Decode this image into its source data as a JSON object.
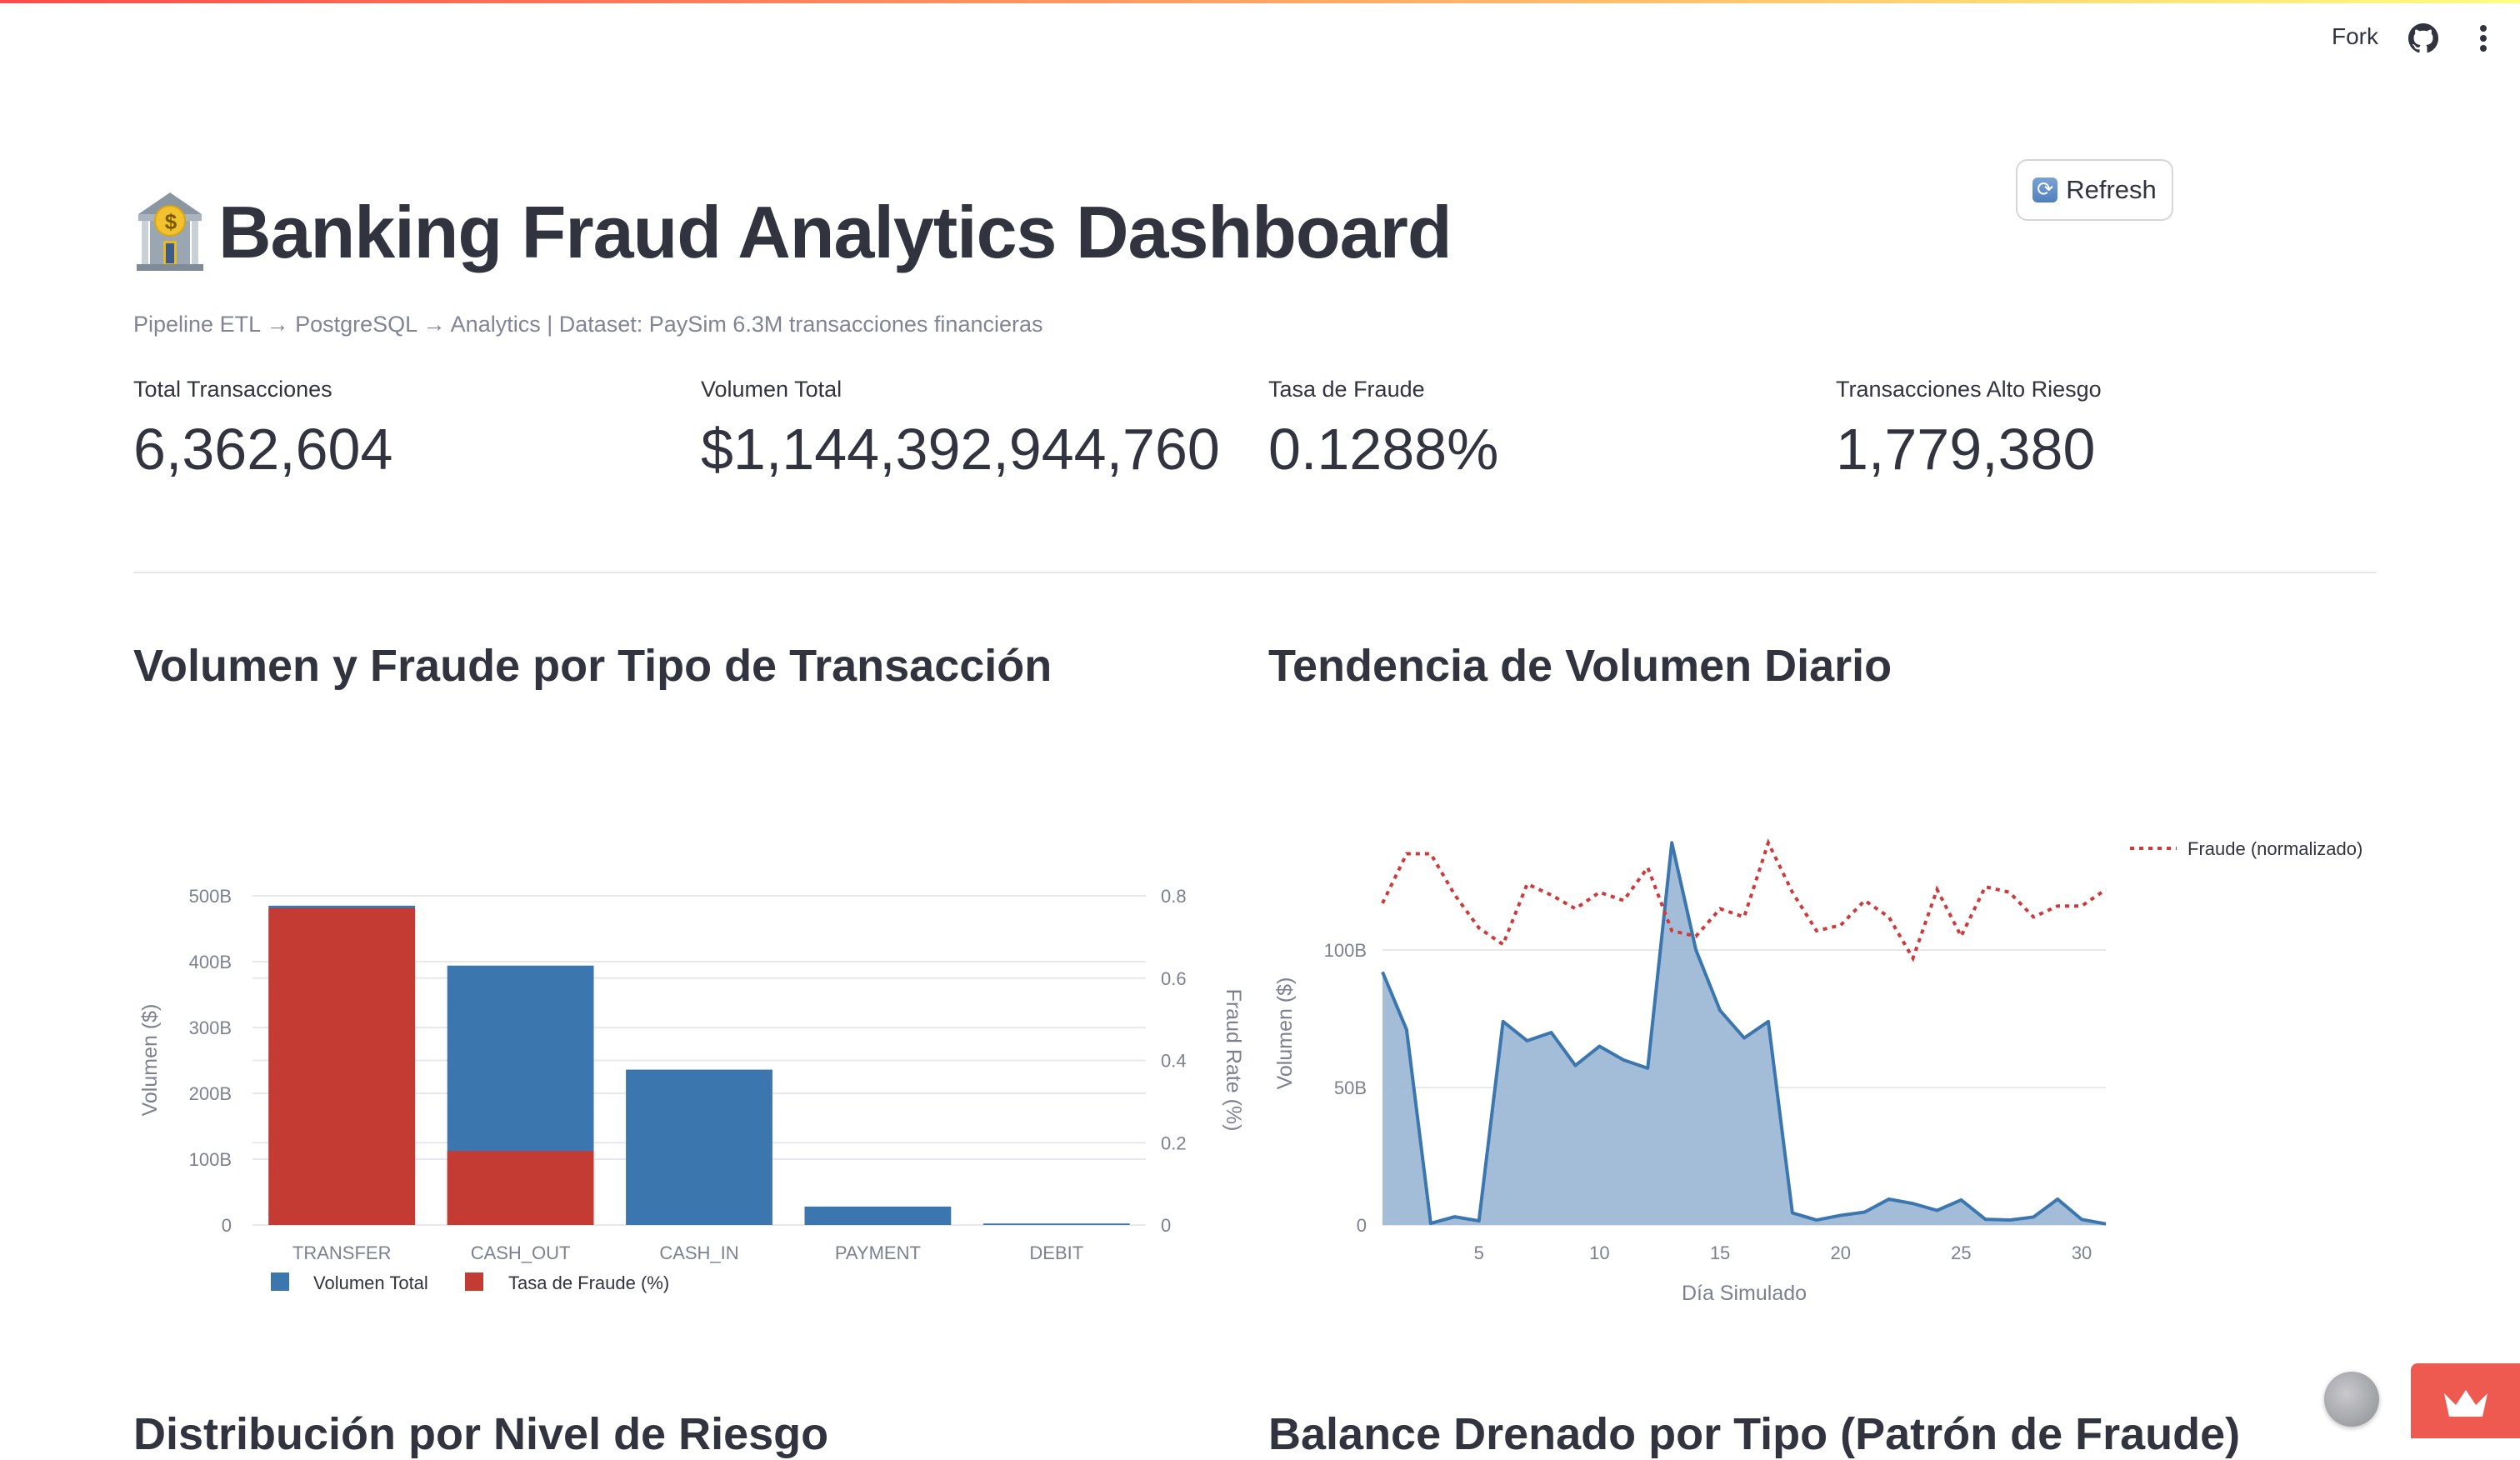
{
  "header": {
    "fork_label": "Fork",
    "github_icon": "github-icon",
    "menu_icon": "kebab-menu-icon"
  },
  "refresh_button": {
    "label": "Refresh",
    "icon": "refresh-icon"
  },
  "page": {
    "title": "Banking Fraud Analytics Dashboard",
    "title_icon": "bank-icon",
    "subtitle": "Pipeline ETL → PostgreSQL → Analytics | Dataset: PaySim 6.3M transacciones financieras"
  },
  "metrics": [
    {
      "label": "Total Transacciones",
      "value": "6,362,604"
    },
    {
      "label": "Volumen Total",
      "value": "$1,144,392,944,760"
    },
    {
      "label": "Tasa de Fraude",
      "value": "0.1288%"
    },
    {
      "label": "Transacciones Alto Riesgo",
      "value": "1,779,380"
    }
  ],
  "sections": {
    "volume_fraud_by_type": "Volumen y Fraude por Tipo de Transacción",
    "daily_trend": "Tendencia de Volumen Diario",
    "risk_distribution": "Distribución por Nivel de Riesgo",
    "drained_balance": "Balance Drenado por Tipo (Patrón de Fraude)"
  },
  "colors": {
    "volume": "#3b76af",
    "fraud": "#c43b34",
    "area_fill": "#9eb9d6",
    "manage_app": "#ef5a50"
  },
  "chart_data": [
    {
      "type": "bar",
      "categories": [
        "TRANSFER",
        "CASH_OUT",
        "CASH_IN",
        "PAYMENT",
        "DEBIT"
      ],
      "series": [
        {
          "name": "Volumen Total",
          "axis": "left",
          "values": [
            485,
            394,
            236,
            28,
            2.3
          ]
        },
        {
          "name": "Tasa de Fraude (%)",
          "axis": "right",
          "values": [
            0.77,
            0.18,
            0,
            0,
            0
          ]
        }
      ],
      "ylabel": "Volumen ($)",
      "y2label": "Fraud Rate (%)",
      "ylim": [
        0,
        500
      ],
      "y_ticks": [
        "0",
        "100B",
        "200B",
        "300B",
        "400B",
        "500B"
      ],
      "y2lim": [
        0,
        0.8
      ],
      "y2_ticks": [
        "0",
        "0.2",
        "0.4",
        "0.6",
        "0.8"
      ],
      "legend": "bottom-left",
      "grid": true
    },
    {
      "type": "area",
      "x": [
        1,
        2,
        3,
        4,
        5,
        6,
        7,
        8,
        9,
        10,
        11,
        12,
        13,
        14,
        15,
        16,
        17,
        18,
        19,
        20,
        21,
        22,
        23,
        24,
        25,
        26,
        27,
        28,
        29,
        30,
        31
      ],
      "series": [
        {
          "name": "",
          "style": "area",
          "values": [
            92,
            71,
            0.6,
            3,
            1.5,
            74,
            67,
            70,
            58,
            65,
            60,
            57,
            139,
            100,
            78,
            68,
            74,
            4.4,
            1.8,
            3.5,
            4.7,
            9.4,
            7.8,
            5.3,
            9.1,
            2.1,
            1.8,
            2.9,
            9.4,
            2,
            0.4
          ]
        },
        {
          "name": "Fraude (normalizado)",
          "style": "dotted",
          "values": [
            117,
            135,
            135,
            120,
            108,
            102,
            124,
            120,
            115,
            121,
            118,
            130,
            107,
            105,
            115,
            112,
            139,
            121,
            107,
            109,
            118,
            112,
            97,
            122,
            105,
            123,
            121,
            112,
            116,
            116,
            122
          ]
        }
      ],
      "xlabel": "Día Simulado",
      "ylabel": "Volumen ($)",
      "x_ticks": [
        "5",
        "10",
        "15",
        "20",
        "25",
        "30"
      ],
      "y_ticks": [
        "0",
        "50B",
        "100B"
      ],
      "xlim": [
        1,
        31
      ],
      "legend": "top-right",
      "grid": true
    }
  ]
}
